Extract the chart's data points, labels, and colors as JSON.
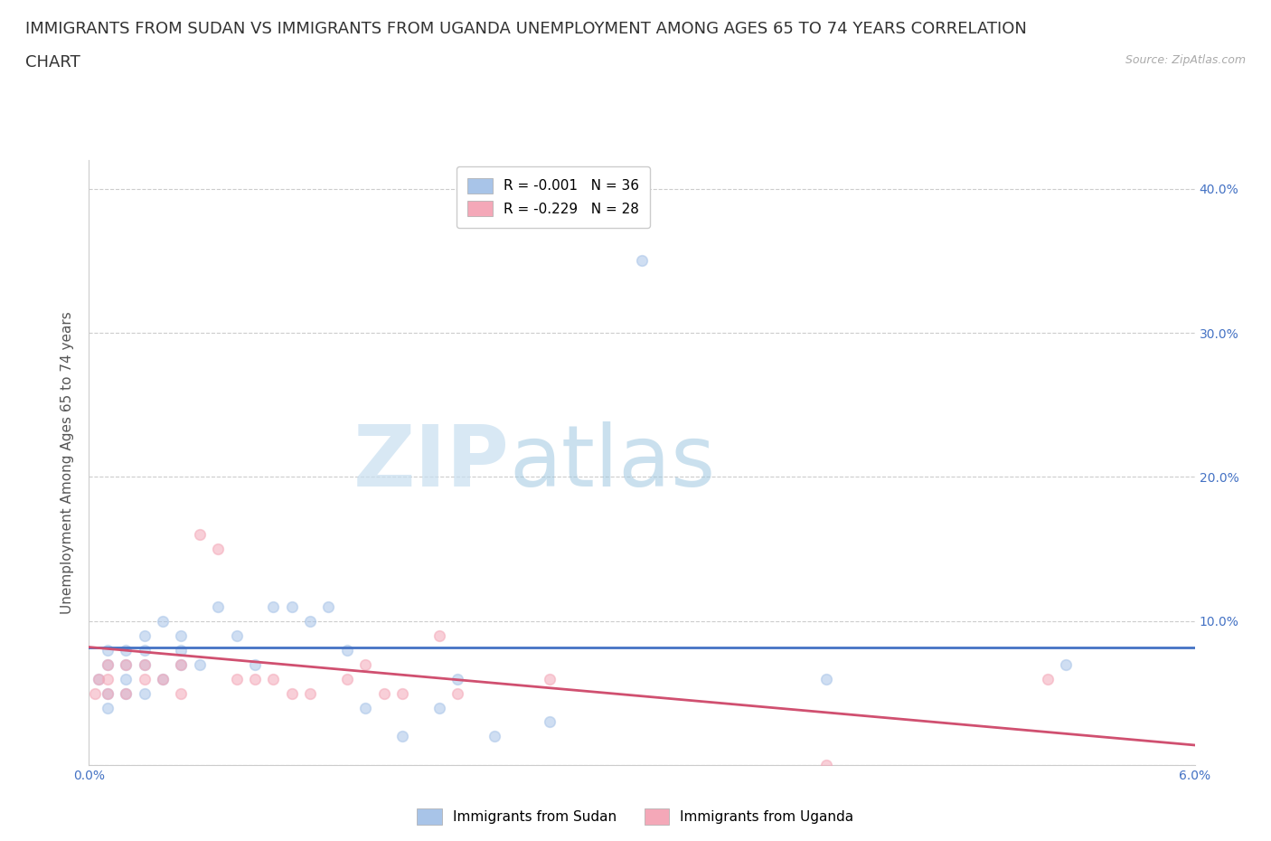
{
  "title_line1": "IMMIGRANTS FROM SUDAN VS IMMIGRANTS FROM UGANDA UNEMPLOYMENT AMONG AGES 65 TO 74 YEARS CORRELATION",
  "title_line2": "CHART",
  "source_text": "Source: ZipAtlas.com",
  "ylabel": "Unemployment Among Ages 65 to 74 years",
  "legend_entry1": "R = -0.001  N = 36",
  "legend_entry2": "R = -0.229  N = 28",
  "legend_label1": "Immigrants from Sudan",
  "legend_label2": "Immigrants from Uganda",
  "sudan_color": "#a8c4e8",
  "uganda_color": "#f4a8b8",
  "xlim": [
    0.0,
    0.06
  ],
  "ylim": [
    0.0,
    0.42
  ],
  "watermark_zip": "ZIP",
  "watermark_atlas": "atlas",
  "sudan_line_color": "#4472c4",
  "uganda_line_color": "#d05070",
  "sudan_line_y0": 0.082,
  "sudan_line_y1": 0.082,
  "uganda_line_y0": 0.082,
  "uganda_line_y1": 0.014,
  "sudan_x": [
    0.0005,
    0.001,
    0.001,
    0.001,
    0.001,
    0.002,
    0.002,
    0.002,
    0.002,
    0.003,
    0.003,
    0.003,
    0.003,
    0.004,
    0.004,
    0.005,
    0.005,
    0.005,
    0.006,
    0.007,
    0.008,
    0.009,
    0.01,
    0.011,
    0.012,
    0.013,
    0.014,
    0.015,
    0.017,
    0.019,
    0.02,
    0.022,
    0.025,
    0.03,
    0.04,
    0.053
  ],
  "sudan_y": [
    0.06,
    0.04,
    0.05,
    0.07,
    0.08,
    0.05,
    0.06,
    0.07,
    0.08,
    0.05,
    0.07,
    0.08,
    0.09,
    0.06,
    0.1,
    0.07,
    0.08,
    0.09,
    0.07,
    0.11,
    0.09,
    0.07,
    0.11,
    0.11,
    0.1,
    0.11,
    0.08,
    0.04,
    0.02,
    0.04,
    0.06,
    0.02,
    0.03,
    0.35,
    0.06,
    0.07
  ],
  "uganda_x": [
    0.0003,
    0.0005,
    0.001,
    0.001,
    0.001,
    0.002,
    0.002,
    0.003,
    0.003,
    0.004,
    0.005,
    0.005,
    0.006,
    0.007,
    0.008,
    0.009,
    0.01,
    0.011,
    0.012,
    0.014,
    0.015,
    0.016,
    0.017,
    0.019,
    0.02,
    0.025,
    0.04,
    0.052
  ],
  "uganda_y": [
    0.05,
    0.06,
    0.05,
    0.06,
    0.07,
    0.05,
    0.07,
    0.06,
    0.07,
    0.06,
    0.07,
    0.05,
    0.16,
    0.15,
    0.06,
    0.06,
    0.06,
    0.05,
    0.05,
    0.06,
    0.07,
    0.05,
    0.05,
    0.09,
    0.05,
    0.06,
    0.0,
    0.06
  ],
  "grid_color": "#cccccc",
  "background_color": "#ffffff",
  "marker_size": 70,
  "marker_alpha": 0.55,
  "title_fontsize": 13,
  "axis_label_fontsize": 11,
  "tick_fontsize": 10,
  "tick_color": "#4472c4"
}
